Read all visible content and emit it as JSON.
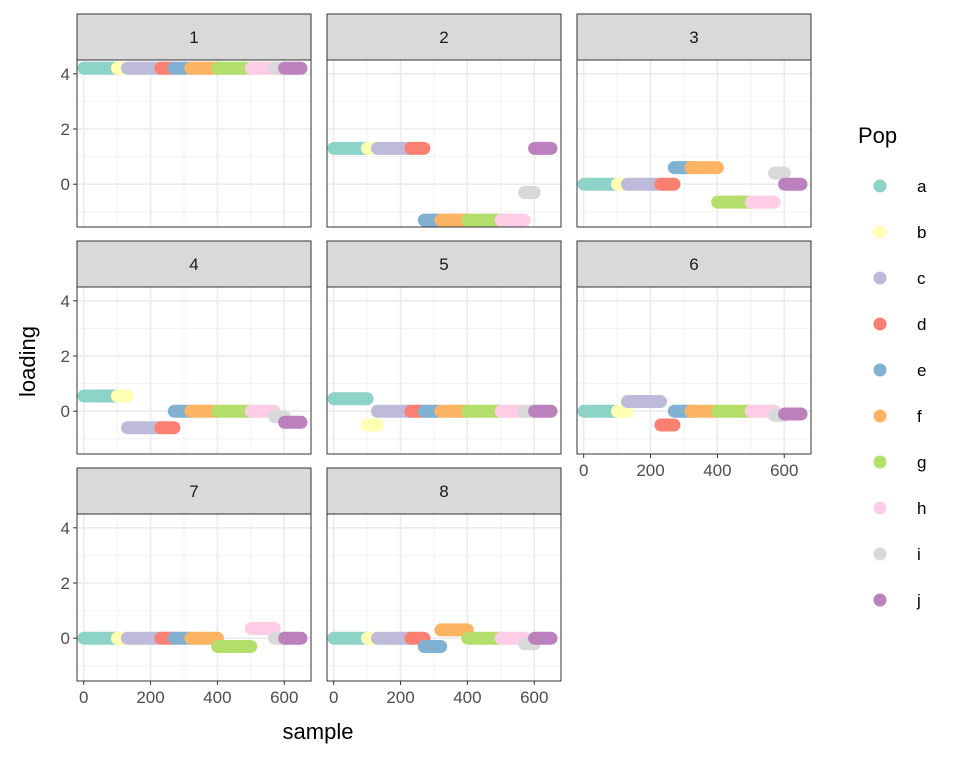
{
  "chart_data": {
    "type": "scatter",
    "facet_type": "wrap",
    "xlabel": "sample",
    "ylabel": "loading",
    "xlim": [
      -20,
      680
    ],
    "ylim": [
      -1.55,
      4.5
    ],
    "x_ticks": [
      0,
      200,
      400,
      600
    ],
    "y_ticks": [
      0,
      2,
      4
    ],
    "grid": true,
    "legend": {
      "title": "Pop",
      "position": "right",
      "entries": [
        {
          "name": "a",
          "color": "#8DD3C7"
        },
        {
          "name": "b",
          "color": "#FFFFB3"
        },
        {
          "name": "c",
          "color": "#BEBADA"
        },
        {
          "name": "d",
          "color": "#FB8072"
        },
        {
          "name": "e",
          "color": "#80B1D3"
        },
        {
          "name": "f",
          "color": "#FDB462"
        },
        {
          "name": "g",
          "color": "#B3DE69"
        },
        {
          "name": "h",
          "color": "#FCCDE5"
        },
        {
          "name": "i",
          "color": "#D9D9D9"
        },
        {
          "name": "j",
          "color": "#BC80BD"
        }
      ]
    },
    "pop_ranges": {
      "a": [
        1,
        100
      ],
      "b": [
        101,
        130
      ],
      "c": [
        131,
        230
      ],
      "d": [
        231,
        270
      ],
      "e": [
        271,
        320
      ],
      "f": [
        321,
        400
      ],
      "g": [
        401,
        500
      ],
      "h": [
        501,
        570
      ],
      "i": [
        571,
        600
      ],
      "j": [
        601,
        650
      ]
    },
    "panels": [
      {
        "label": "1",
        "values": {
          "a": 4.2,
          "b": 4.2,
          "c": 4.2,
          "d": 4.2,
          "e": 4.2,
          "f": 4.2,
          "g": 4.2,
          "h": 4.2,
          "i": 4.2,
          "j": 4.2
        }
      },
      {
        "label": "2",
        "values": {
          "a": 1.3,
          "b": 1.3,
          "c": 1.3,
          "d": 1.3,
          "e": -1.3,
          "f": -1.3,
          "g": -1.3,
          "h": -1.3,
          "i": -0.3,
          "j": 1.3
        }
      },
      {
        "label": "3",
        "values": {
          "a": 0.0,
          "b": 0.0,
          "c": 0.0,
          "d": 0.0,
          "e": 0.6,
          "f": 0.6,
          "g": -0.65,
          "h": -0.65,
          "i": 0.4,
          "j": 0.0
        }
      },
      {
        "label": "4",
        "values": {
          "a": 0.55,
          "b": 0.55,
          "c": -0.6,
          "d": -0.6,
          "e": 0.0,
          "f": 0.0,
          "g": 0.0,
          "h": 0.0,
          "i": -0.2,
          "j": -0.4
        }
      },
      {
        "label": "5",
        "values": {
          "a": 0.45,
          "b": -0.5,
          "c": 0.0,
          "d": 0.0,
          "e": 0.0,
          "f": 0.0,
          "g": 0.0,
          "h": 0.0,
          "i": 0.0,
          "j": 0.0
        }
      },
      {
        "label": "6",
        "values": {
          "a": 0.0,
          "b": 0.0,
          "c": 0.35,
          "d": -0.5,
          "e": 0.0,
          "f": 0.0,
          "g": 0.0,
          "h": 0.0,
          "i": -0.15,
          "j": -0.1
        }
      },
      {
        "label": "7",
        "values": {
          "a": 0.0,
          "b": 0.0,
          "c": 0.0,
          "d": 0.0,
          "e": 0.0,
          "f": 0.0,
          "g": -0.3,
          "h": 0.35,
          "i": 0.0,
          "j": 0.0
        }
      },
      {
        "label": "8",
        "values": {
          "a": 0.0,
          "b": 0.0,
          "c": 0.0,
          "d": 0.0,
          "e": -0.3,
          "f": 0.3,
          "g": 0.0,
          "h": 0.0,
          "i": -0.2,
          "j": 0.0
        }
      }
    ]
  }
}
